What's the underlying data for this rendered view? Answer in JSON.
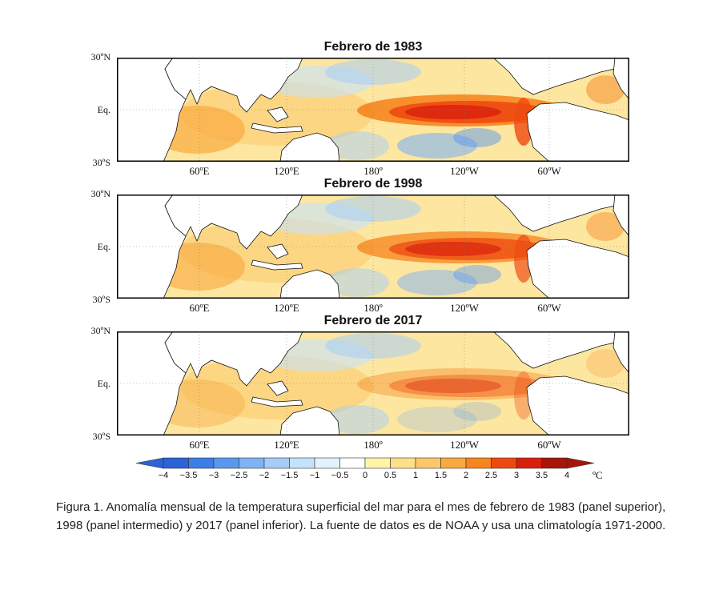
{
  "panels": [
    {
      "title": "Febrero de 1983",
      "lat_labels": [
        "30ºN",
        "Eq.",
        "30ºS"
      ],
      "lon_labels": [
        "60ºE",
        "120ºE",
        "180º",
        "120ºW",
        "60ºW"
      ],
      "warm_intensity": 1.0
    },
    {
      "title": "Febrero de 1998",
      "lat_labels": [
        "30ºN",
        "Eq.",
        "30ºS"
      ],
      "lon_labels": [
        "60ºE",
        "120ºE",
        "180º",
        "120ºW",
        "60ºW"
      ],
      "warm_intensity": 0.85
    },
    {
      "title": "Febrero de 2017",
      "lat_labels": [
        "30ºN",
        "Eq.",
        "30ºS"
      ],
      "lon_labels": [
        "60ºE",
        "120ºE",
        "180º",
        "120ºW",
        "60ºW"
      ],
      "warm_intensity": 0.45
    }
  ],
  "colorbar": {
    "labels": [
      "−4",
      "−3.5",
      "−3",
      "−2.5",
      "−2",
      "−1.5",
      "−1",
      "−0.5",
      "0",
      "0.5",
      "1",
      "1.5",
      "2",
      "2.5",
      "3",
      "3.5",
      "4"
    ],
    "colors": [
      "#2b63d6",
      "#3b7ee6",
      "#5a98ee",
      "#7fb3f4",
      "#a5cdf8",
      "#c6e2fb",
      "#e2f2fd",
      "#ffffff",
      "#fff4a8",
      "#fde08a",
      "#fcc86a",
      "#f9a93f",
      "#f6851f",
      "#ee4a10",
      "#d81f0c",
      "#a81408"
    ],
    "unit": "ºC"
  },
  "caption": "Figura 1. Anomalía mensual de la temperatura superficial del mar para el mes de febrero de 1983 (panel superior), 1998 (panel intermedio) y 2017 (panel inferior). La fuente de datos es de NOAA y usa una climatología 1971-2000."
}
